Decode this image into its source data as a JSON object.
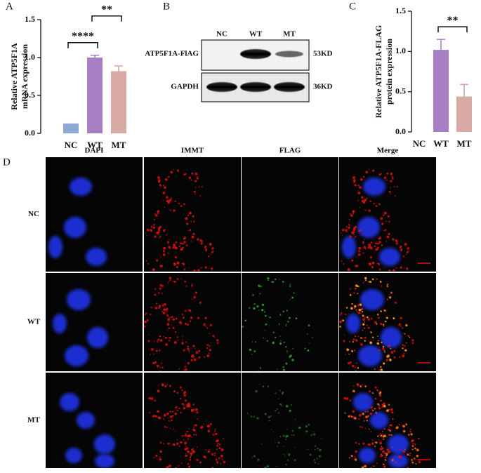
{
  "panels": [
    "A",
    "B",
    "C",
    "D"
  ],
  "chart_data": [
    {
      "type": "bar",
      "y_label": [
        "Relative ATP5F1A",
        "mRNA expression"
      ],
      "categories": [
        "NC",
        "WT",
        "MT"
      ],
      "values": [
        0.13,
        1.0,
        0.82
      ],
      "errors": [
        0.0,
        0.03,
        0.07
      ],
      "colors": [
        "#8fa9d6",
        "#a97fc4",
        "#d9a9a5"
      ],
      "ylim": [
        0,
        1.5
      ],
      "yticks": [
        {
          "value": 0,
          "label": "0.0"
        },
        0.5,
        {
          "value": 1,
          "label": "1.0"
        },
        1.5
      ],
      "significance": [
        {
          "between": [
            "NC",
            "WT"
          ],
          "label": "****"
        },
        {
          "between": [
            "WT",
            "MT"
          ],
          "label": "**"
        }
      ]
    },
    {
      "type": "bar",
      "y_label": [
        "Relative ATP5F1A-FLAG",
        "protein expression"
      ],
      "categories": [
        "NC",
        "WT",
        "MT"
      ],
      "values": [
        0,
        1.02,
        0.44
      ],
      "errors": [
        0,
        0.13,
        0.15
      ],
      "colors": [
        "#8fa9d6",
        "#a97fc4",
        "#d9a9a5"
      ],
      "ylim": [
        0,
        1.5
      ],
      "yticks": [
        {
          "value": 0,
          "label": "0.0"
        },
        0.5,
        {
          "value": 1,
          "label": "1.0"
        },
        1.5
      ],
      "significance": [
        {
          "between": [
            "WT",
            "MT"
          ],
          "label": "**"
        }
      ]
    }
  ],
  "blot": {
    "lanes": [
      "NC",
      "WT",
      "MT"
    ],
    "rows": [
      {
        "label": "ATP5F1A-FlAG",
        "size": "53KD"
      },
      {
        "label": "GAPDH",
        "size": "36KD"
      }
    ]
  },
  "microscopy": {
    "columns": [
      "DAPI",
      "IMMT",
      "FLAG",
      "Merge"
    ],
    "rows": [
      "NC",
      "WT",
      "MT"
    ]
  }
}
